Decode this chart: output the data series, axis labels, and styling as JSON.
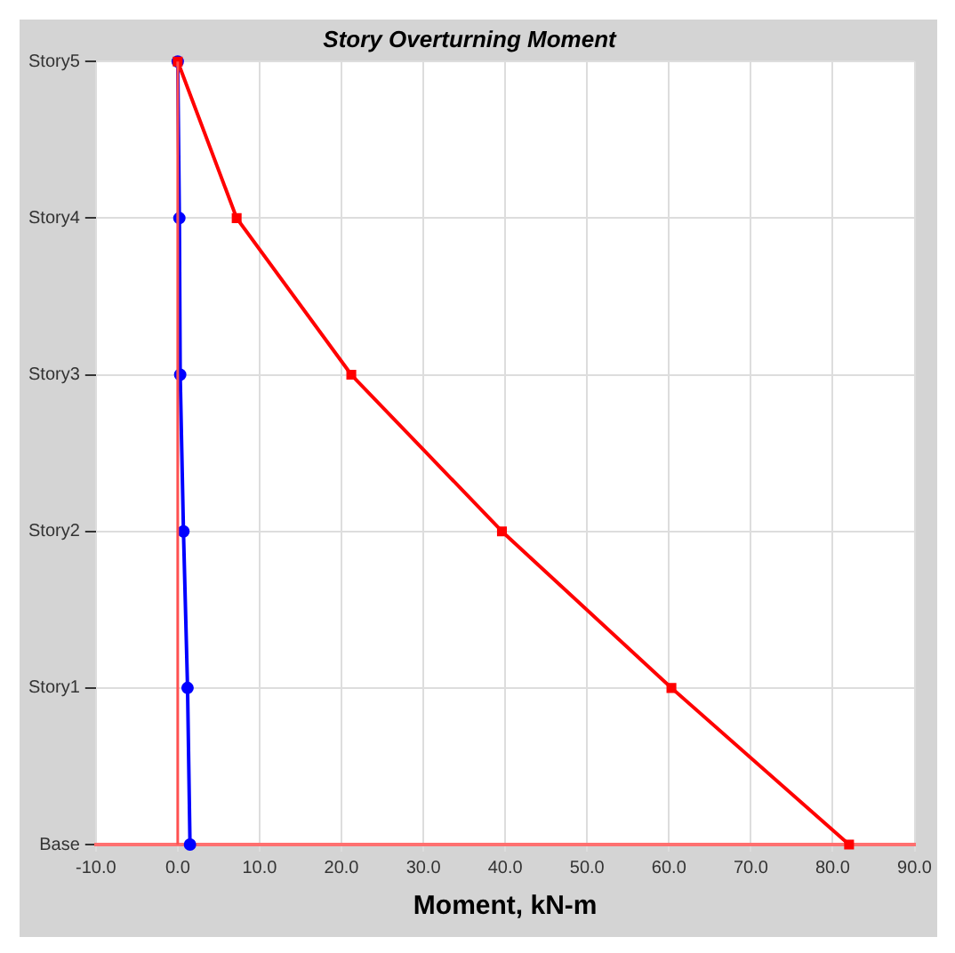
{
  "chart_data": {
    "type": "line",
    "title": "Story Overturning Moment",
    "xlabel": "Moment, kN-m",
    "orientation": "horizontal",
    "categories": [
      "Story5",
      "Story4",
      "Story3",
      "Story2",
      "Story1",
      "Base"
    ],
    "series": [
      {
        "color": "#ff0000",
        "marker": "square",
        "values": [
          0,
          7.2,
          21.2,
          39.6,
          60.3,
          82.0
        ]
      },
      {
        "color": "#0000ff",
        "marker": "circle",
        "values": [
          0,
          0.2,
          0.3,
          0.7,
          1.2,
          1.5
        ]
      }
    ],
    "xlim": [
      -10,
      90
    ],
    "xticks": [
      {
        "value": -10,
        "label": "-10.0"
      },
      {
        "value": 0,
        "label": "0.0"
      },
      {
        "value": 10,
        "label": "10.0"
      },
      {
        "value": 20,
        "label": "20.0"
      },
      {
        "value": 30,
        "label": "30.0"
      },
      {
        "value": 40,
        "label": "40.0"
      },
      {
        "value": 50,
        "label": "50.0"
      },
      {
        "value": 60,
        "label": "60.0"
      },
      {
        "value": 70,
        "label": "70.0"
      },
      {
        "value": 80,
        "label": "80.0"
      },
      {
        "value": 90,
        "label": "90.0"
      }
    ],
    "ref_lines": [
      {
        "axis": "x",
        "value": 0,
        "color": "#ff5050"
      }
    ],
    "grid": true,
    "legend": false,
    "line_style": "solid"
  }
}
